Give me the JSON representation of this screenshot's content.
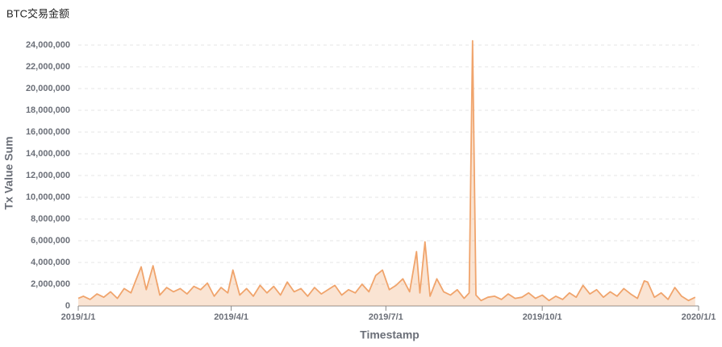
{
  "chart_data": {
    "type": "area",
    "title": "BTC交易金额",
    "x_label": "Timestamp",
    "y_label": "Tx Value Sum",
    "color": "#f0a46c",
    "grid": true,
    "xlim": [
      "2019/1/1",
      "2020/1/1"
    ],
    "xticks": [
      "2019/1/1",
      "2019/4/1",
      "2019/7/1",
      "2019/10/1",
      "2020/1/1"
    ],
    "ylim": [
      0,
      24500000
    ],
    "yticks": [
      0,
      {
        "value": 2000000,
        "label": "2,000,000"
      },
      {
        "value": 4000000,
        "label": "4,000,000"
      },
      {
        "value": 6000000,
        "label": "6,000,000"
      },
      {
        "value": 8000000,
        "label": "8,000,000"
      },
      {
        "value": 10000000,
        "label": "10,000,000"
      },
      {
        "value": 12000000,
        "label": "12,000,000"
      },
      {
        "value": 14000000,
        "label": "14,000,000"
      },
      {
        "value": 16000000,
        "label": "16,000,000"
      },
      {
        "value": 18000000,
        "label": "18,000,000"
      },
      {
        "value": 20000000,
        "label": "20,000,000"
      },
      {
        "value": 22000000,
        "label": "22,000,000"
      },
      {
        "value": 24000000,
        "label": "24,000,000"
      }
    ],
    "x": [
      "2019/1/1",
      "2019/1/4",
      "2019/1/8",
      "2019/1/12",
      "2019/1/16",
      "2019/1/20",
      "2019/1/24",
      "2019/1/28",
      "2019/2/1",
      "2019/2/4",
      "2019/2/7",
      "2019/2/10",
      "2019/2/14",
      "2019/2/18",
      "2019/2/22",
      "2019/2/26",
      "2019/3/2",
      "2019/3/6",
      "2019/3/10",
      "2019/3/14",
      "2019/3/18",
      "2019/3/22",
      "2019/3/26",
      "2019/3/30",
      "2019/4/2",
      "2019/4/6",
      "2019/4/10",
      "2019/4/14",
      "2019/4/18",
      "2019/4/22",
      "2019/4/26",
      "2019/4/30",
      "2019/5/4",
      "2019/5/8",
      "2019/5/12",
      "2019/5/16",
      "2019/5/20",
      "2019/5/24",
      "2019/5/28",
      "2019/6/1",
      "2019/6/5",
      "2019/6/9",
      "2019/6/13",
      "2019/6/17",
      "2019/6/21",
      "2019/6/25",
      "2019/6/29",
      "2019/7/3",
      "2019/7/7",
      "2019/7/11",
      "2019/7/15",
      "2019/7/19",
      "2019/7/21",
      "2019/7/24",
      "2019/7/27",
      "2019/7/31",
      "2019/8/4",
      "2019/8/8",
      "2019/8/12",
      "2019/8/16",
      "2019/8/19",
      "2019/8/21",
      "2019/8/23",
      "2019/8/26",
      "2019/8/30",
      "2019/9/3",
      "2019/9/7",
      "2019/9/11",
      "2019/9/15",
      "2019/9/19",
      "2019/9/23",
      "2019/9/27",
      "2019/10/1",
      "2019/10/5",
      "2019/10/9",
      "2019/10/13",
      "2019/10/17",
      "2019/10/21",
      "2019/10/25",
      "2019/10/29",
      "2019/11/2",
      "2019/11/6",
      "2019/11/10",
      "2019/11/14",
      "2019/11/18",
      "2019/11/22",
      "2019/11/26",
      "2019/11/30",
      "2019/12/2",
      "2019/12/6",
      "2019/12/10",
      "2019/12/14",
      "2019/12/18",
      "2019/12/22",
      "2019/12/26",
      "2019/12/30"
    ],
    "values": [
      700000,
      900000,
      600000,
      1100000,
      800000,
      1300000,
      700000,
      1600000,
      1200000,
      2400000,
      3600000,
      1500000,
      3700000,
      1000000,
      1700000,
      1300000,
      1600000,
      1100000,
      1800000,
      1500000,
      2100000,
      900000,
      1700000,
      1200000,
      3300000,
      1000000,
      1600000,
      900000,
      1900000,
      1200000,
      1800000,
      1000000,
      2200000,
      1300000,
      1600000,
      900000,
      1700000,
      1100000,
      1500000,
      1900000,
      1000000,
      1500000,
      1200000,
      2000000,
      1300000,
      2800000,
      3300000,
      1500000,
      1900000,
      2500000,
      1300000,
      5000000,
      1200000,
      5900000,
      900000,
      2500000,
      1300000,
      1000000,
      1500000,
      700000,
      1200000,
      24400000,
      1000000,
      500000,
      800000,
      900000,
      600000,
      1100000,
      700000,
      800000,
      1200000,
      700000,
      1000000,
      500000,
      900000,
      600000,
      1200000,
      800000,
      1900000,
      1100000,
      1500000,
      800000,
      1300000,
      900000,
      1600000,
      1100000,
      700000,
      2300000,
      2200000,
      800000,
      1200000,
      600000,
      1700000,
      900000,
      500000,
      800000
    ]
  }
}
